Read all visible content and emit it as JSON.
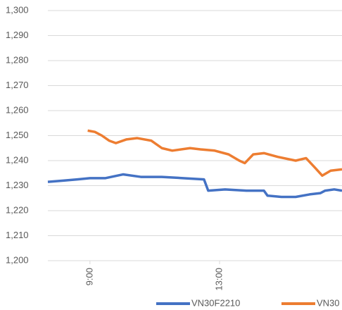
{
  "chart_data": {
    "type": "line",
    "series": [
      {
        "name": "VN30F2210",
        "color": "#4472c4",
        "x": [
          7.7,
          8.17,
          8.61,
          9.0,
          9.48,
          10.02,
          10.57,
          11.22,
          11.87,
          12.52,
          12.65,
          13.17,
          13.83,
          14.37,
          14.48,
          14.91,
          15.35,
          15.78,
          16.11,
          16.26,
          16.54,
          16.78
        ],
        "values": [
          1231.5,
          1232,
          1232.5,
          1233,
          1233,
          1234.5,
          1233.5,
          1233.5,
          1233,
          1232.5,
          1228,
          1228.5,
          1228,
          1228,
          1226,
          1225.5,
          1225.5,
          1226.5,
          1227,
          1228,
          1228.5,
          1228
        ]
      },
      {
        "name": "VN30",
        "color": "#ed7d31",
        "x": [
          8.93,
          9.15,
          9.37,
          9.59,
          9.8,
          10.13,
          10.46,
          10.89,
          11.22,
          11.54,
          12.09,
          12.41,
          12.85,
          13.28,
          13.61,
          13.78,
          14.04,
          14.37,
          14.8,
          15.35,
          15.67,
          15.96,
          16.17,
          16.43,
          16.78
        ],
        "values": [
          1252,
          1251.5,
          1250,
          1248,
          1247,
          1248.5,
          1249,
          1248,
          1245,
          1244,
          1245,
          1244.5,
          1244,
          1242.5,
          1240,
          1239,
          1242.5,
          1243,
          1241.5,
          1240,
          1241,
          1237,
          1234,
          1236,
          1236.5
        ]
      }
    ],
    "xlim": [
      7.7,
      16.78
    ],
    "xticks": [
      {
        "value": 9,
        "label": "9:00"
      },
      {
        "value": 13,
        "label": "13:00"
      }
    ],
    "ylim": [
      1200,
      1300
    ],
    "yticks": [
      {
        "value": 1200,
        "label": "1,200"
      },
      {
        "value": 1210,
        "label": "1,210"
      },
      {
        "value": 1220,
        "label": "1,220"
      },
      {
        "value": 1230,
        "label": "1,230"
      },
      {
        "value": 1240,
        "label": "1,240"
      },
      {
        "value": 1250,
        "label": "1,250"
      },
      {
        "value": 1260,
        "label": "1,260"
      },
      {
        "value": 1270,
        "label": "1,270"
      },
      {
        "value": 1280,
        "label": "1,280"
      },
      {
        "value": 1290,
        "label": "1,290"
      },
      {
        "value": 1300,
        "label": "1,300"
      }
    ],
    "grid": true,
    "legend": "bottom"
  }
}
